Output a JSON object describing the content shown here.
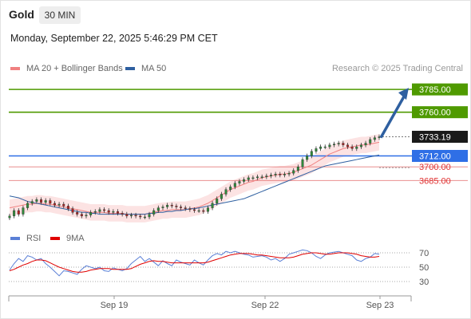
{
  "header": {
    "symbol": "Gold",
    "timeframe": "30 MIN",
    "datetime": "Monday, September 22, 2025 5:46:29 PM CET"
  },
  "legend": {
    "ma20": "MA 20 + Bollinger Bands",
    "ma50": "MA 50",
    "ma20_color": "#f08080",
    "ma50_color": "#2e5fa0",
    "credit": "Research © 2025 Trading Central"
  },
  "rsi_legend": {
    "rsi": "RSI",
    "ma": "9MA",
    "rsi_color": "#5a7fd6",
    "ma_color": "#e00000"
  },
  "chart_data": [
    {
      "type": "candlestick",
      "title": "Gold",
      "timeframe": "30 MIN",
      "x_ticks": [
        "Sep 19",
        "Sep 22",
        "Sep 23"
      ],
      "ylim": [
        3631,
        3800
      ],
      "current_price": "3733.19",
      "levels": [
        {
          "label": "3785.00",
          "value": 3785,
          "color": "#4f9a00",
          "style": "solid"
        },
        {
          "label": "3760.00",
          "value": 3760,
          "color": "#4f9a00",
          "style": "solid"
        },
        {
          "label": "3712.00",
          "value": 3712,
          "color": "#2f6fe6",
          "style": "solid"
        },
        {
          "label": "3700.00",
          "value": 3700,
          "color": "#e06060",
          "style": "solid"
        },
        {
          "label": "3685.00",
          "value": 3685,
          "color": "#e06060",
          "style": "solid"
        }
      ],
      "arrow": {
        "from": 3732,
        "to": 3785,
        "color": "#2e5fa0"
      },
      "closes": [
        3646,
        3652,
        3648,
        3655,
        3660,
        3662,
        3664,
        3661,
        3663,
        3660,
        3658,
        3659,
        3657,
        3654,
        3650,
        3648,
        3646,
        3647,
        3650,
        3651,
        3653,
        3652,
        3650,
        3651,
        3649,
        3648,
        3646,
        3647,
        3646,
        3645,
        3645,
        3648,
        3652,
        3655,
        3656,
        3658,
        3657,
        3656,
        3655,
        3654,
        3653,
        3652,
        3652,
        3651,
        3655,
        3660,
        3665,
        3670,
        3675,
        3678,
        3682,
        3684,
        3686,
        3688,
        3688,
        3689,
        3689,
        3690,
        3691,
        3692,
        3691,
        3692,
        3693,
        3696,
        3700,
        3708,
        3712,
        3717,
        3720,
        3722,
        3722,
        3724,
        3725,
        3726,
        3724,
        3722,
        3720,
        3722,
        3724,
        3726,
        3730,
        3732,
        3733
      ],
      "ma20": [
        3655,
        3656,
        3657,
        3658,
        3659,
        3659,
        3660,
        3660,
        3659,
        3659,
        3658,
        3657,
        3656,
        3655,
        3654,
        3653,
        3652,
        3651,
        3650,
        3650,
        3650,
        3650,
        3649,
        3649,
        3649,
        3649,
        3648,
        3648,
        3648,
        3648,
        3648,
        3649,
        3650,
        3651,
        3652,
        3652,
        3653,
        3653,
        3653,
        3653,
        3654,
        3655,
        3656,
        3658,
        3660,
        3663,
        3666,
        3669,
        3672,
        3675,
        3677,
        3679,
        3681,
        3683,
        3684,
        3686,
        3688,
        3689,
        3690,
        3691,
        3692,
        3692,
        3693,
        3694,
        3696,
        3698,
        3700,
        3702,
        3705,
        3708,
        3711,
        3714,
        3716,
        3718,
        3720,
        3721,
        3722,
        3723,
        3724,
        3724,
        3725,
        3726,
        3727
      ],
      "ma50": [
        3668,
        3667,
        3666,
        3664,
        3662,
        3661,
        3660,
        3659,
        3658,
        3657,
        3656,
        3655,
        3654,
        3653,
        3652,
        3651,
        3650,
        3650,
        3649,
        3649,
        3648,
        3648,
        3648,
        3648,
        3648,
        3648,
        3648,
        3648,
        3648,
        3648,
        3648,
        3649,
        3649,
        3650,
        3650,
        3651,
        3651,
        3652,
        3652,
        3653,
        3654,
        3654,
        3655,
        3656,
        3657,
        3658,
        3659,
        3660,
        3661,
        3662,
        3663,
        3664,
        3665,
        3667,
        3669,
        3671,
        3673,
        3675,
        3677,
        3679,
        3681,
        3683,
        3685,
        3687,
        3689,
        3691,
        3693,
        3695,
        3697,
        3699,
        3701,
        3702,
        3703,
        3704,
        3705,
        3706,
        3707,
        3708,
        3709,
        3710,
        3711,
        3712,
        3713
      ]
    },
    {
      "type": "line",
      "title": "RSI",
      "series": [
        {
          "name": "RSI",
          "color": "#5a7fd6",
          "values": [
            46,
            55,
            62,
            58,
            66,
            64,
            60,
            62,
            55,
            50,
            44,
            38,
            45,
            44,
            42,
            40,
            47,
            52,
            50,
            48,
            50,
            45,
            44,
            49,
            47,
            45,
            48,
            55,
            60,
            65,
            58,
            62,
            57,
            52,
            59,
            55,
            52,
            60,
            57,
            55,
            53,
            60,
            56,
            53,
            60,
            66,
            69,
            67,
            72,
            70,
            72,
            70,
            68,
            67,
            64,
            65,
            66,
            64,
            60,
            62,
            58,
            62,
            68,
            70,
            72,
            74,
            73,
            70,
            65,
            62,
            67,
            70,
            71,
            72,
            70,
            68,
            66,
            60,
            58,
            62,
            64,
            69,
            68
          ]
        },
        {
          "name": "9MA",
          "color": "#e00000",
          "values": [
            45,
            47,
            50,
            53,
            55,
            58,
            60,
            60,
            59,
            56,
            53,
            50,
            48,
            46,
            44,
            43,
            43,
            44,
            46,
            47,
            48,
            48,
            48,
            47,
            47,
            47,
            47,
            48,
            51,
            54,
            56,
            58,
            59,
            58,
            58,
            57,
            56,
            56,
            56,
            56,
            56,
            56,
            56,
            56,
            57,
            59,
            61,
            63,
            65,
            67,
            68,
            69,
            69,
            69,
            68,
            67,
            67,
            66,
            65,
            64,
            63,
            63,
            63,
            64,
            66,
            68,
            69,
            70,
            70,
            69,
            68,
            68,
            69,
            70,
            70,
            70,
            69,
            68,
            66,
            65,
            64,
            64,
            65
          ]
        }
      ],
      "ylim": [
        20,
        80
      ],
      "y_ticks": [
        "70",
        "50",
        "30"
      ],
      "reference_levels": [
        70,
        50,
        30
      ]
    }
  ]
}
